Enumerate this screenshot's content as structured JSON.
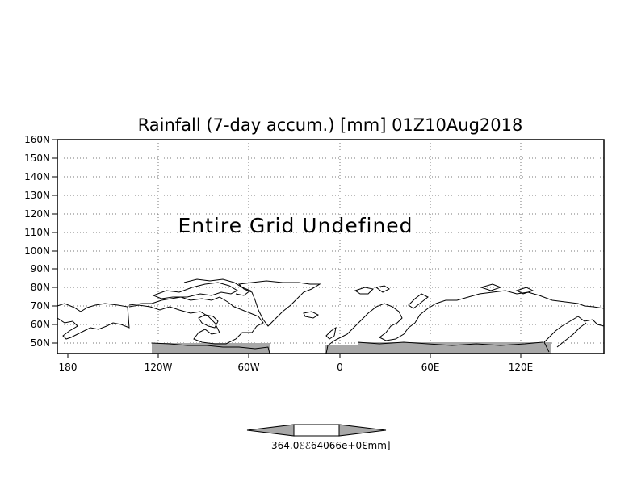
{
  "map": {
    "title": "Rainfall (7-day accum.) [mm] 01Z10Aug2018",
    "notice": "Entire Grid Undefined",
    "lat_labels": [
      "160N",
      "150N",
      "140N",
      "130N",
      "120N",
      "110N",
      "100N",
      "90N",
      "80N",
      "70N",
      "60N",
      "50N"
    ],
    "lon_labels": [
      "180",
      "120W",
      "60W",
      "0",
      "60E",
      "120E"
    ],
    "projection": "latitude-longitude",
    "grid": true,
    "shading_color": "#a8a8a8"
  },
  "colorbar": {
    "label": "364.0ℰℰ64066e+0ℇmm]",
    "left_arrow_color": "#a8a8a8",
    "middle_color": "#ffffff",
    "right_arrow_color": "#a8a8a8"
  }
}
